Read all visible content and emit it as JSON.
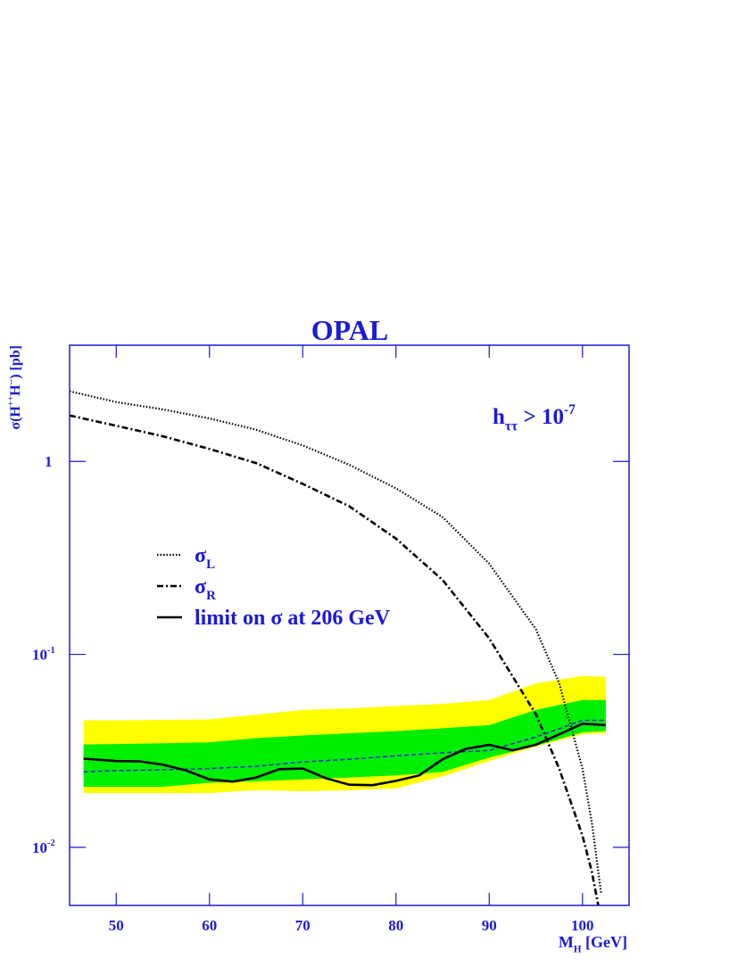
{
  "chart_data": {
    "type": "line",
    "title": "OPAL",
    "xlabel": [
      {
        "text": "M"
      },
      {
        "sub": "H"
      },
      {
        "text": " [GeV]"
      }
    ],
    "ylabel": [
      {
        "text": "σ(H"
      },
      {
        "sup": "++"
      },
      {
        "text": "H"
      },
      {
        "sup": "--"
      },
      {
        "text": ") [pb]"
      }
    ],
    "annotation": [
      {
        "text": "h"
      },
      {
        "sub": "ττ"
      },
      {
        "text": " > 10"
      },
      {
        "sup": "-7"
      }
    ],
    "xlim": [
      45,
      105
    ],
    "ylim": [
      0.005,
      4
    ],
    "log_y": true,
    "xticks": [
      50,
      60,
      70,
      80,
      90,
      100
    ],
    "yticks": [
      {
        "value": 0.01,
        "label": [
          {
            "text": "10"
          },
          {
            "sup": "-2"
          }
        ]
      },
      {
        "value": 0.1,
        "label": [
          {
            "text": "10"
          },
          {
            "sup": "-1"
          }
        ]
      },
      1
    ],
    "x": [
      46.5,
      50,
      55,
      60,
      65,
      70,
      75,
      80,
      85,
      90,
      95,
      100,
      102.5
    ],
    "bands": [
      {
        "color": "#ffff00",
        "upper": [
          0.0455,
          0.0455,
          0.0457,
          0.046,
          0.0487,
          0.0515,
          0.0525,
          0.054,
          0.0554,
          0.058,
          0.0707,
          0.0773,
          0.0766
        ],
        "lower": [
          0.0191,
          0.0191,
          0.0191,
          0.0191,
          0.0198,
          0.0195,
          0.0198,
          0.0202,
          0.0233,
          0.028,
          0.0333,
          0.0385,
          0.039
        ]
      },
      {
        "color": "#00ee00",
        "upper": [
          0.0341,
          0.0343,
          0.0346,
          0.035,
          0.0368,
          0.038,
          0.039,
          0.04,
          0.0414,
          0.043,
          0.0515,
          0.058,
          0.058
        ],
        "lower": [
          0.0206,
          0.0206,
          0.0206,
          0.0216,
          0.022,
          0.0225,
          0.023,
          0.0236,
          0.0246,
          0.0292,
          0.0336,
          0.0394,
          0.04
        ]
      }
    ],
    "series": [
      {
        "color": "#2020e0",
        "dash": "dashed",
        "values": [
          0.0246,
          0.025,
          0.0252,
          0.0256,
          0.0263,
          0.0277,
          0.0286,
          0.0298,
          0.0309,
          0.0318,
          0.0373,
          0.0455,
          0.0455
        ]
      },
      {
        "name": [
          {
            "text": "σ"
          },
          {
            "sub": "L"
          }
        ],
        "color": "#000000",
        "dash": "dotted",
        "x": [
          45,
          50,
          55,
          60,
          65,
          70,
          75,
          80,
          85,
          90,
          95,
          97.5,
          100,
          101,
          102
        ],
        "values": [
          2.31,
          2.03,
          1.86,
          1.67,
          1.46,
          1.21,
          0.96,
          0.725,
          0.515,
          0.295,
          0.135,
          0.071,
          0.0256,
          0.0135,
          0.0058
        ]
      },
      {
        "name": [
          {
            "text": "σ"
          },
          {
            "sub": "R"
          }
        ],
        "color": "#000000",
        "dash": "dashdot",
        "x": [
          45,
          50,
          55,
          60,
          65,
          70,
          75,
          80,
          85,
          90,
          95,
          97.5,
          100,
          101,
          101.7
        ],
        "values": [
          1.73,
          1.53,
          1.35,
          1.16,
          0.98,
          0.765,
          0.585,
          0.398,
          0.243,
          0.121,
          0.049,
          0.0256,
          0.0115,
          0.0075,
          0.005
        ]
      },
      {
        "name": [
          {
            "text": "limit on σ at 206 GeV"
          }
        ],
        "color": "#000000",
        "dash": "solid",
        "x": [
          46.5,
          50,
          52.5,
          55,
          57.5,
          60,
          62.5,
          65,
          67.5,
          70,
          72.5,
          75,
          77.5,
          80,
          82.5,
          85,
          87.5,
          90,
          92.5,
          95,
          97.5,
          100,
          102.5
        ],
        "values": [
          0.0288,
          0.028,
          0.0279,
          0.0268,
          0.025,
          0.0225,
          0.0219,
          0.023,
          0.0254,
          0.0256,
          0.0228,
          0.0211,
          0.021,
          0.0221,
          0.0236,
          0.0286,
          0.0324,
          0.034,
          0.0318,
          0.034,
          0.0385,
          0.0437,
          0.043
        ]
      }
    ]
  }
}
